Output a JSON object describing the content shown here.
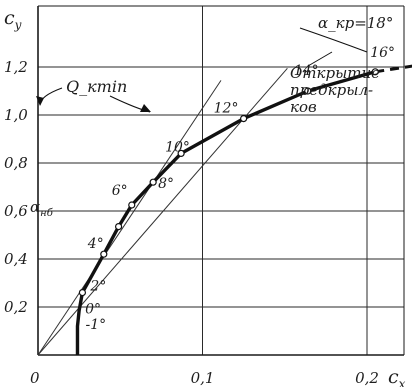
{
  "chart_data": {
    "type": "line",
    "title": "",
    "xlabel": "c_x",
    "ylabel": "c_y",
    "xlim": [
      0,
      0.265
    ],
    "ylim": [
      0,
      1.3
    ],
    "grid": true,
    "x_ticks": [
      {
        "value": 0,
        "label": "0"
      },
      {
        "value": 0.1,
        "label": "0,1"
      },
      {
        "value": 0.2,
        "label": "0,2"
      }
    ],
    "y_ticks": [
      {
        "value": 0.2,
        "label": "0,2"
      },
      {
        "value": 0.4,
        "label": "0,4"
      },
      {
        "value": 0.6,
        "label": "0,6"
      },
      {
        "value": 0.8,
        "label": "0,8"
      },
      {
        "value": 1.0,
        "label": "1,0"
      },
      {
        "value": 1.2,
        "label": "1,2"
      }
    ],
    "series": [
      {
        "points": [
          {
            "x": 0.024,
            "y": 0.0,
            "label": ""
          },
          {
            "x": 0.024,
            "y": 0.12,
            "label": "-1°"
          },
          {
            "x": 0.025,
            "y": 0.185,
            "label": "0°"
          },
          {
            "x": 0.027,
            "y": 0.26,
            "label": "2°"
          },
          {
            "x": 0.04,
            "y": 0.42,
            "label": "4°"
          },
          {
            "x": 0.049,
            "y": 0.535,
            "label": ""
          },
          {
            "x": 0.057,
            "y": 0.625,
            "label": "6°"
          },
          {
            "x": 0.07,
            "y": 0.72,
            "label": "8°"
          },
          {
            "x": 0.087,
            "y": 0.84,
            "label": "10°"
          },
          {
            "x": 0.125,
            "y": 0.985,
            "label": "12°"
          },
          {
            "x": 0.164,
            "y": 1.1,
            "label": "14°"
          },
          {
            "x": 0.205,
            "y": 1.18,
            "label": "16°"
          },
          {
            "x": 0.262,
            "y": 1.24,
            "label": ""
          }
        ]
      }
    ],
    "annotations": {
      "alpha_nb": "α_нб",
      "alpha_kr": "α_кр=18°",
      "q_kmin": "Q_кmin",
      "slats": [
        "Открытие",
        "предкрыл-",
        "ков"
      ]
    }
  }
}
